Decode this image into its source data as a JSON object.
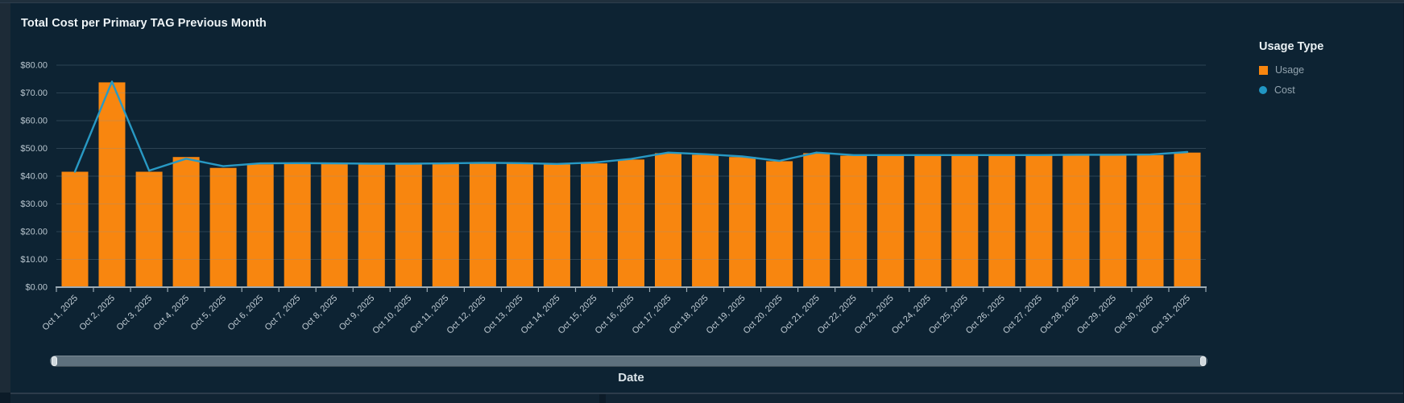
{
  "widget": {
    "title": "Total Cost per Primary TAG Previous Month"
  },
  "legend": {
    "title": "Usage Type",
    "items": [
      {
        "label": "Usage",
        "marker": "square",
        "color": "#f8860f"
      },
      {
        "label": "Cost",
        "marker": "circle",
        "color": "#2196c3"
      }
    ]
  },
  "x_axis_title": "Date",
  "colors": {
    "card_background": "#0d2333",
    "bar_fill": "#f8860f",
    "line_stroke": "#2899c4",
    "axis": "#9cabb5",
    "gridline": "rgba(125,150,170,0.28)",
    "tick_label": "#c3ced6",
    "y_label": "#b9c6cf"
  },
  "chart_data": {
    "type": "bar",
    "title": "Total Cost per Primary TAG Previous Month",
    "xlabel": "Date",
    "ylabel": "",
    "ylim": [
      0,
      80
    ],
    "grid": true,
    "legend_position": "right",
    "y_tick_values": [
      0,
      10,
      20,
      30,
      40,
      50,
      60,
      70,
      80
    ],
    "y_tick_labels": [
      "$0.00",
      "$10.00",
      "$20.00",
      "$30.00",
      "$40.00",
      "$50.00",
      "$60.00",
      "$70.00",
      "$80.00"
    ],
    "categories": [
      "Oct 1, 2025",
      "Oct 2, 2025",
      "Oct 3, 2025",
      "Oct 4, 2025",
      "Oct 5, 2025",
      "Oct 6, 2025",
      "Oct 7, 2025",
      "Oct 8, 2025",
      "Oct 9, 2025",
      "Oct 10, 2025",
      "Oct 11, 2025",
      "Oct 12, 2025",
      "Oct 13, 2025",
      "Oct 14, 2025",
      "Oct 15, 2025",
      "Oct 16, 2025",
      "Oct 17, 2025",
      "Oct 18, 2025",
      "Oct 19, 2025",
      "Oct 20, 2025",
      "Oct 21, 2025",
      "Oct 22, 2025",
      "Oct 23, 2025",
      "Oct 24, 2025",
      "Oct 25, 2025",
      "Oct 26, 2025",
      "Oct 27, 2025",
      "Oct 28, 2025",
      "Oct 29, 2025",
      "Oct 30, 2025",
      "Oct 31, 2025"
    ],
    "series": [
      {
        "name": "Usage",
        "type": "bar",
        "color": "#f8860f",
        "values": [
          41.6,
          73.8,
          41.6,
          46.9,
          43.0,
          44.3,
          44.5,
          44.4,
          44.3,
          44.3,
          44.4,
          44.6,
          44.5,
          44.2,
          44.6,
          46.0,
          48.3,
          47.7,
          46.9,
          45.4,
          48.3,
          47.4,
          47.4,
          47.4,
          47.4,
          47.4,
          47.4,
          47.5,
          47.5,
          47.6,
          48.5
        ]
      },
      {
        "name": "Cost",
        "type": "line",
        "color": "#2899c4",
        "values": [
          41.6,
          74.1,
          42.0,
          46.3,
          43.6,
          44.6,
          44.7,
          44.6,
          44.5,
          44.5,
          44.6,
          44.8,
          44.7,
          44.4,
          44.9,
          46.2,
          48.5,
          47.9,
          47.1,
          45.5,
          48.5,
          47.6,
          47.6,
          47.6,
          47.6,
          47.6,
          47.6,
          47.7,
          47.7,
          47.8,
          48.7
        ]
      }
    ]
  }
}
